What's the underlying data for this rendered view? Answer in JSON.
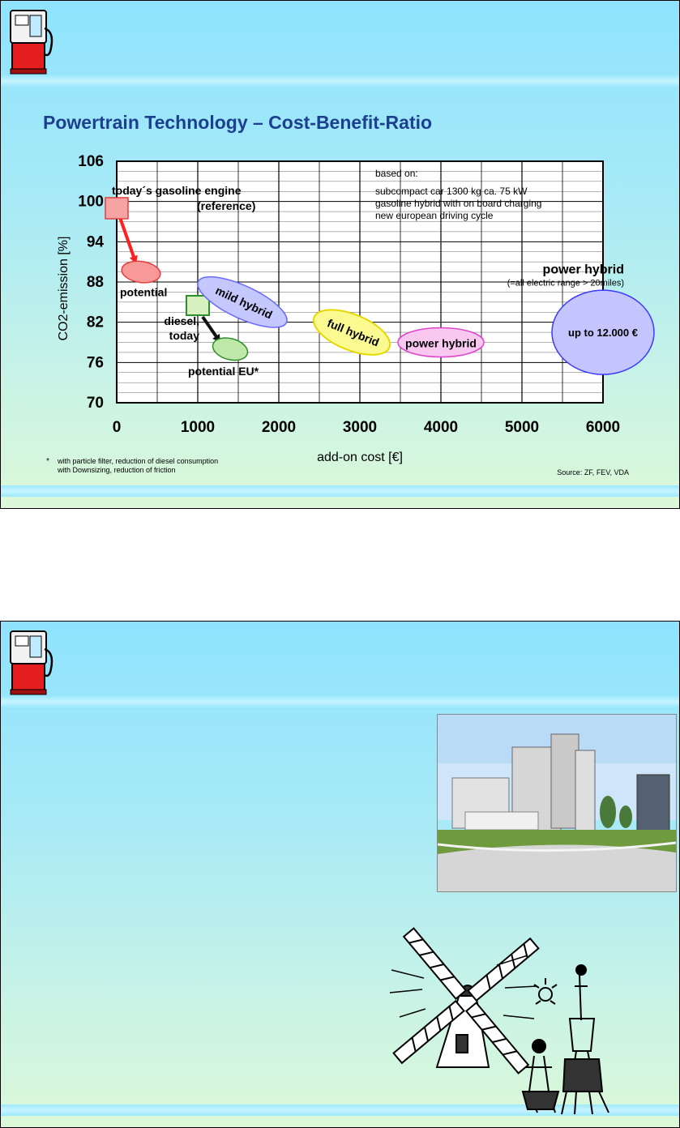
{
  "slides": [
    {
      "title": "Powertrain Technology – Cost-Benefit-Ratio",
      "footnote_star": "*",
      "footnote_lines": [
        "with particle filter, reduction of diesel consumption",
        "with Downsizing, reduction of friction"
      ],
      "source": "Source: ZF, FEV, VDA",
      "note_lines": [
        "based on:",
        "subcompact car 1300 kg ca. 75 kW",
        "gasoline hybrid with on board charging",
        "new european driving cycle"
      ]
    },
    {
      "title": "",
      "photo_icon": "factory-photo",
      "clipart_icon": "windmill-don-quixote-clipart"
    }
  ],
  "chart_data": {
    "type": "scatter",
    "title": "Powertrain Technology – Cost-Benefit-Ratio",
    "xlabel": "add-on cost  [€]",
    "ylabel": "CO2-emission [%]",
    "xlim": [
      0,
      6000
    ],
    "ylim": [
      70,
      106
    ],
    "x_ticks": [
      "0",
      "1000",
      "2000",
      "3000",
      "4000",
      "5000",
      "6000"
    ],
    "y_ticks": [
      "70",
      "76",
      "82",
      "88",
      "94",
      "100",
      "106"
    ],
    "grid": true,
    "points": [
      {
        "label": "today´s gasoline engine",
        "label2": "(reference)",
        "x": 0,
        "y": 99,
        "shape": "square",
        "color": "#f6a3a3"
      },
      {
        "label": "potential",
        "x": 300,
        "y": 89.5,
        "shape": "ellipse",
        "color": "#f89898"
      },
      {
        "label": "diesel,",
        "label2": "today",
        "x": 1000,
        "y": 84.5,
        "shape": "square",
        "color": "#d8f0c0"
      },
      {
        "label": "potential EU*",
        "x": 1400,
        "y": 78,
        "shape": "ellipse",
        "color": "#bfe8a8"
      },
      {
        "label": "mild hybrid",
        "x": 1550,
        "y": 85,
        "shape": "ellipse",
        "color": "#c4c8ff"
      },
      {
        "label": "full hybrid",
        "x": 2900,
        "y": 80.5,
        "shape": "ellipse",
        "color": "#fafa90"
      },
      {
        "label": "power hybrid",
        "x": 4000,
        "y": 79,
        "shape": "ellipse",
        "color": "#f8c8f0"
      },
      {
        "label": "up to 12.000 €",
        "x": 6000,
        "y": 80.5,
        "shape": "ellipse",
        "color": "#c4c4ff"
      }
    ],
    "annotations": [
      "power hybrid",
      "(=all electric range > 20miles)"
    ]
  }
}
